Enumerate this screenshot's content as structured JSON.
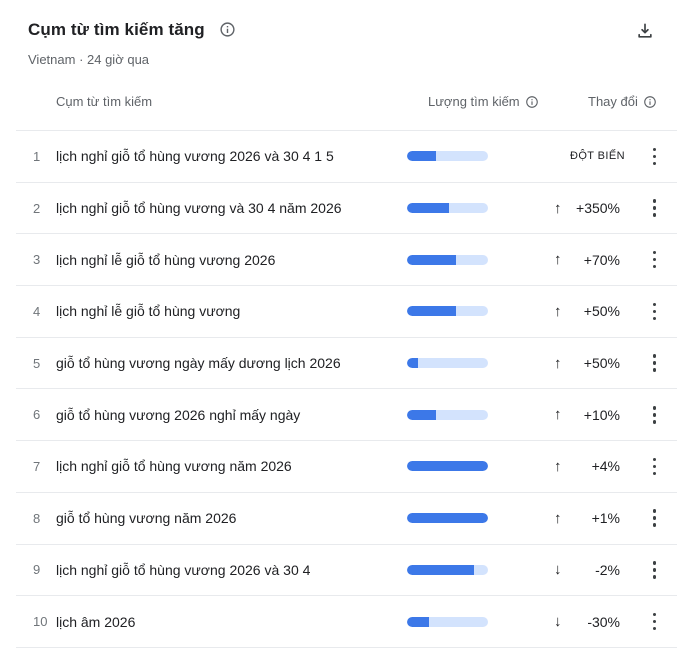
{
  "header": {
    "title": "Cụm từ tìm kiếm tăng",
    "subtitle": "Vietnam · 24 giờ qua"
  },
  "icons": {
    "title_info": "info-icon",
    "download": "download-icon",
    "volume_info": "info-icon",
    "change_info": "info-icon",
    "row_menu": "kebab-menu-icon"
  },
  "colors": {
    "bar_fill": "#3c78e8",
    "bar_track": "#d3e3fd",
    "text_primary": "#202124",
    "text_muted": "#5f6368",
    "divider": "#e8eaed"
  },
  "columns": {
    "term": "Cụm từ tìm kiếm",
    "volume": "Lượng tìm kiếm",
    "change": "Thay đổi"
  },
  "table": {
    "rows": [
      {
        "rank": "1",
        "term": "lịch nghỉ giỗ tổ hùng vương 2026 và 30 4 1 5",
        "volume_pct": 36,
        "arrow": "",
        "change": "ĐỘT BIẾN"
      },
      {
        "rank": "2",
        "term": "lịch nghỉ giỗ tổ hùng vương và 30 4 năm 2026",
        "volume_pct": 52,
        "arrow": "↑",
        "change": "+350%"
      },
      {
        "rank": "3",
        "term": "lịch nghỉ lễ giỗ tổ hùng vương 2026",
        "volume_pct": 60,
        "arrow": "↑",
        "change": "+70%"
      },
      {
        "rank": "4",
        "term": "lịch nghỉ lễ giỗ tổ hùng vương",
        "volume_pct": 60,
        "arrow": "↑",
        "change": "+50%"
      },
      {
        "rank": "5",
        "term": "giỗ tổ hùng vương ngày mấy dương lịch 2026",
        "volume_pct": 13,
        "arrow": "↑",
        "change": "+50%"
      },
      {
        "rank": "6",
        "term": "giỗ tổ hùng vương 2026 nghỉ mấy ngày",
        "volume_pct": 36,
        "arrow": "↑",
        "change": "+10%"
      },
      {
        "rank": "7",
        "term": "lịch nghỉ giỗ tổ hùng vương năm 2026",
        "volume_pct": 100,
        "arrow": "↑",
        "change": "+4%"
      },
      {
        "rank": "8",
        "term": "giỗ tổ hùng vương năm 2026",
        "volume_pct": 100,
        "arrow": "↑",
        "change": "+1%"
      },
      {
        "rank": "9",
        "term": "lịch nghỉ giỗ tổ hùng vương 2026 và 30 4",
        "volume_pct": 83,
        "arrow": "↓",
        "change": "-2%"
      },
      {
        "rank": "10",
        "term": "lịch âm 2026",
        "volume_pct": 27,
        "arrow": "↓",
        "change": "-30%"
      }
    ]
  }
}
